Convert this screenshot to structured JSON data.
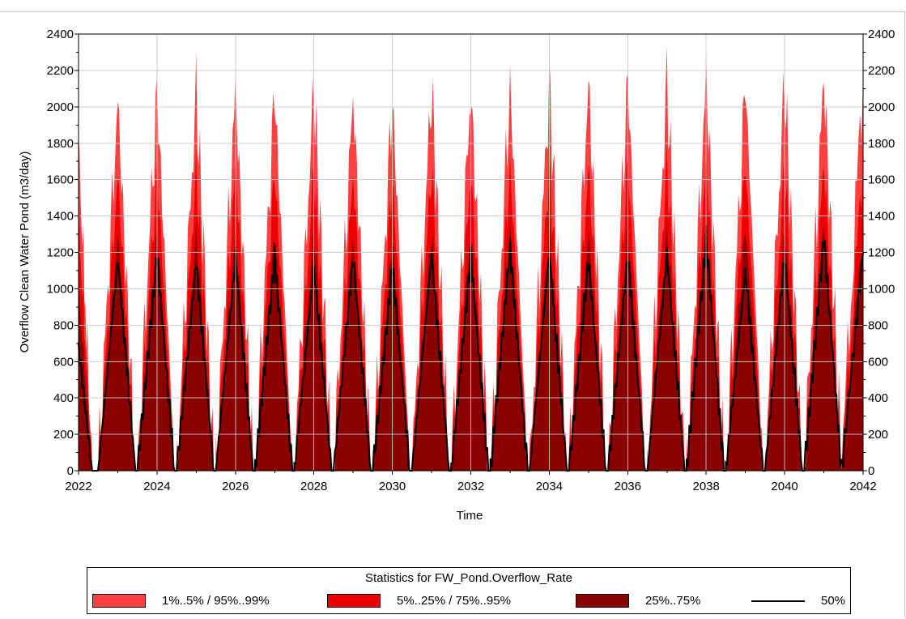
{
  "chart_data": {
    "type": "area",
    "title": "",
    "xlabel": "Time",
    "ylabel": "Overflow Clean Water Pond (m3/day)",
    "xlim": [
      2022,
      2042
    ],
    "ylim": [
      0,
      2400
    ],
    "x_ticks": [
      "2022",
      "2024",
      "2026",
      "2028",
      "2030",
      "2032",
      "2034",
      "2036",
      "2038",
      "2040",
      "2042"
    ],
    "y_ticks": [
      "0",
      "200",
      "400",
      "600",
      "800",
      "1000",
      "1200",
      "1400",
      "1600",
      "1800",
      "2000",
      "2200",
      "2400"
    ],
    "grid": true,
    "legend_position": "bottom",
    "legend_title": "Statistics for FW_Pond.Overflow_Rate",
    "colors": {
      "band_1_99": "#ff4040",
      "band_5_95": "#ee0000",
      "band_25_75": "#8b0000",
      "median": "#000000"
    },
    "series": [
      {
        "name": "1%..5% / 95%..99%",
        "kind": "band"
      },
      {
        "name": "5%..25% / 75%..95%",
        "kind": "band"
      },
      {
        "name": "25%..75%",
        "kind": "band"
      },
      {
        "name": "50%",
        "kind": "line"
      }
    ],
    "annual_peaks": {
      "years": [
        2023,
        2024,
        2025,
        2026,
        2027,
        2028,
        2029,
        2030,
        2031,
        2032,
        2033,
        2034,
        2035,
        2036,
        2037,
        2038,
        2039,
        2040,
        2041
      ],
      "p99": [
        2040,
        2080,
        2080,
        2090,
        2080,
        2100,
        2060,
        2030,
        2110,
        2100,
        2120,
        2130,
        2130,
        2140,
        2140,
        2160,
        2130,
        2140,
        2180
      ],
      "p95": [
        1620,
        1650,
        1640,
        1660,
        1640,
        1650,
        1620,
        1600,
        1660,
        1650,
        1670,
        1680,
        1670,
        1690,
        1680,
        1700,
        1680,
        1680,
        1700
      ],
      "p75": [
        1300,
        1320,
        1300,
        1310,
        1300,
        1320,
        1290,
        1280,
        1320,
        1320,
        1350,
        1330,
        1310,
        1340,
        1330,
        1360,
        1340,
        1330,
        1360
      ],
      "p25": [
        1020,
        1040,
        1030,
        1040,
        1020,
        1040,
        1010,
        1000,
        1040,
        1030,
        1060,
        1050,
        1030,
        1060,
        1040,
        1080,
        1050,
        1040,
        1080
      ],
      "p50": [
        1170,
        1190,
        1150,
        1170,
        1180,
        1120,
        1180,
        1130,
        1190,
        1180,
        1230,
        1200,
        1160,
        1180,
        1190,
        1280,
        1100,
        1180,
        1290
      ]
    },
    "annual_lows": {
      "p1": 0,
      "p5": 0,
      "p25": 0,
      "p50": 0
    },
    "start_values": {
      "p99": 1800,
      "p95": 1380,
      "p75": 1000,
      "p50": 680,
      "p25": 520
    },
    "end_values": {
      "p99": 2180,
      "p95": 1700,
      "p75": 1320,
      "p50": 1200,
      "p25": 950
    }
  }
}
